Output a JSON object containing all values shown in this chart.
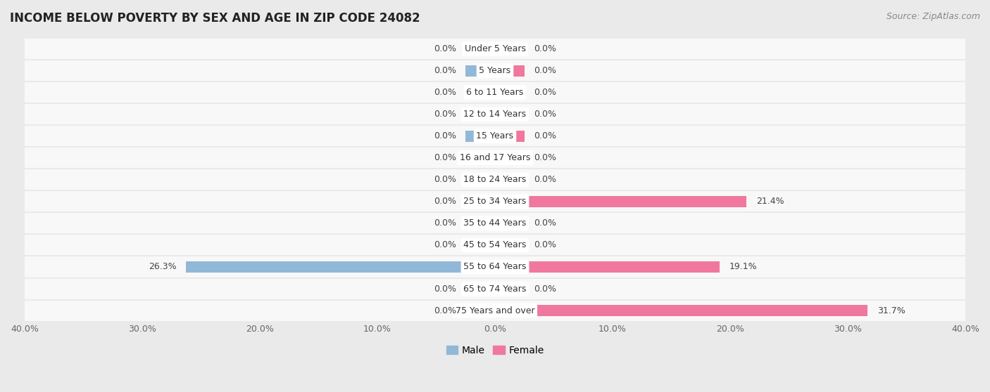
{
  "title": "INCOME BELOW POVERTY BY SEX AND AGE IN ZIP CODE 24082",
  "source": "Source: ZipAtlas.com",
  "categories": [
    "Under 5 Years",
    "5 Years",
    "6 to 11 Years",
    "12 to 14 Years",
    "15 Years",
    "16 and 17 Years",
    "18 to 24 Years",
    "25 to 34 Years",
    "35 to 44 Years",
    "45 to 54 Years",
    "55 to 64 Years",
    "65 to 74 Years",
    "75 Years and over"
  ],
  "male_values": [
    0.0,
    0.0,
    0.0,
    0.0,
    0.0,
    0.0,
    0.0,
    0.0,
    0.0,
    0.0,
    26.3,
    0.0,
    0.0
  ],
  "female_values": [
    0.0,
    0.0,
    0.0,
    0.0,
    0.0,
    0.0,
    0.0,
    21.4,
    0.0,
    0.0,
    19.1,
    0.0,
    31.7
  ],
  "male_color": "#92b8d8",
  "female_color": "#f0789e",
  "xlim": 40.0,
  "background_color": "#eaeaea",
  "row_bg_color": "#f8f8f8",
  "label_bg_color": "#ffffff",
  "title_fontsize": 12,
  "label_fontsize": 9,
  "tick_fontsize": 9,
  "source_fontsize": 9,
  "value_fontsize": 9
}
